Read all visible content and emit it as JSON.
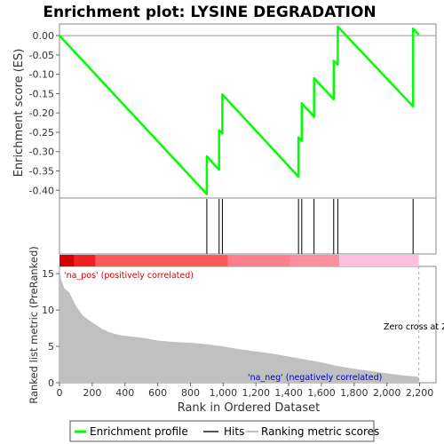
{
  "chart_data": {
    "type": "line",
    "title": "Enrichment plot: LYSINE DEGRADATION",
    "panels": {
      "enrichment": {
        "ylabel": "Enrichment score (ES)",
        "ylim": [
          -0.42,
          0.03
        ],
        "yticks": [
          "0.00",
          "-0.05",
          "-0.10",
          "-0.15",
          "-0.20",
          "-0.25",
          "-0.30",
          "-0.35",
          "-0.40"
        ],
        "series": [
          {
            "name": "Enrichment profile",
            "color": "#00ff00",
            "x": [
              0,
              900,
              900,
              975,
              975,
              995,
              995,
              1460,
              1460,
              1480,
              1480,
              1555,
              1555,
              1675,
              1675,
              1700,
              1700,
              2160,
              2160,
              2195
            ],
            "y": [
              0.0,
              -0.41,
              -0.312,
              -0.347,
              -0.245,
              -0.253,
              -0.152,
              -0.365,
              -0.263,
              -0.272,
              -0.175,
              -0.21,
              -0.11,
              -0.165,
              -0.065,
              -0.075,
              0.023,
              -0.183,
              0.018,
              0.002
            ]
          }
        ]
      },
      "hits": {
        "positions": [
          900,
          975,
          995,
          1460,
          1480,
          1555,
          1675,
          1700,
          2160
        ],
        "color": "#000000"
      },
      "color_bar": {
        "segments": [
          {
            "from": 0,
            "to": 90,
            "color": "#d40000"
          },
          {
            "from": 90,
            "to": 220,
            "color": "#ee2222"
          },
          {
            "from": 220,
            "to": 1030,
            "color": "#ff5a5a"
          },
          {
            "from": 1030,
            "to": 1410,
            "color": "#ff7f8c"
          },
          {
            "from": 1410,
            "to": 1710,
            "color": "#ff8fa0"
          },
          {
            "from": 1710,
            "to": 2195,
            "color": "#ffc0dd"
          }
        ]
      },
      "ranked_metric": {
        "ylabel": "Ranked list metric (PreRanked)",
        "xlabel": "Rank in Ordered Dataset",
        "ylim": [
          0,
          16
        ],
        "yticks": [
          "0",
          "5",
          "10",
          "15"
        ],
        "xticks": [
          "0",
          "200",
          "400",
          "600",
          "800",
          "1,000",
          "1,200",
          "1,400",
          "1,600",
          "1,800",
          "2,000",
          "2,200"
        ],
        "xlim": [
          0,
          2300
        ],
        "fill_color": "#c0c0c0",
        "x": [
          0,
          10,
          30,
          60,
          100,
          140,
          180,
          220,
          260,
          300,
          340,
          380,
          420,
          500,
          600,
          700,
          800,
          900,
          1000,
          1100,
          1200,
          1300,
          1400,
          1500,
          1600,
          1700,
          1800,
          1900,
          2000,
          2100,
          2195
        ],
        "y": [
          15.8,
          14.2,
          13.0,
          12.4,
          10.6,
          9.3,
          8.6,
          8.0,
          7.4,
          7.0,
          6.7,
          6.5,
          6.4,
          6.2,
          5.8,
          5.6,
          5.5,
          5.3,
          5.0,
          4.6,
          4.3,
          4.0,
          3.6,
          3.2,
          2.8,
          2.3,
          1.9,
          1.6,
          1.3,
          1.0,
          0.8
        ],
        "zero_cross_label": "Zero cross at 2",
        "pos_label": "'na_pos' (positively correlated)",
        "neg_label": "'na_neg' (negatively correlated)"
      }
    },
    "legend": [
      {
        "label": "Enrichment profile",
        "color": "#00ff00"
      },
      {
        "label": "Hits",
        "color": "#000000"
      },
      {
        "label": "Ranking metric scores",
        "color": "#c0c0c0"
      }
    ]
  }
}
